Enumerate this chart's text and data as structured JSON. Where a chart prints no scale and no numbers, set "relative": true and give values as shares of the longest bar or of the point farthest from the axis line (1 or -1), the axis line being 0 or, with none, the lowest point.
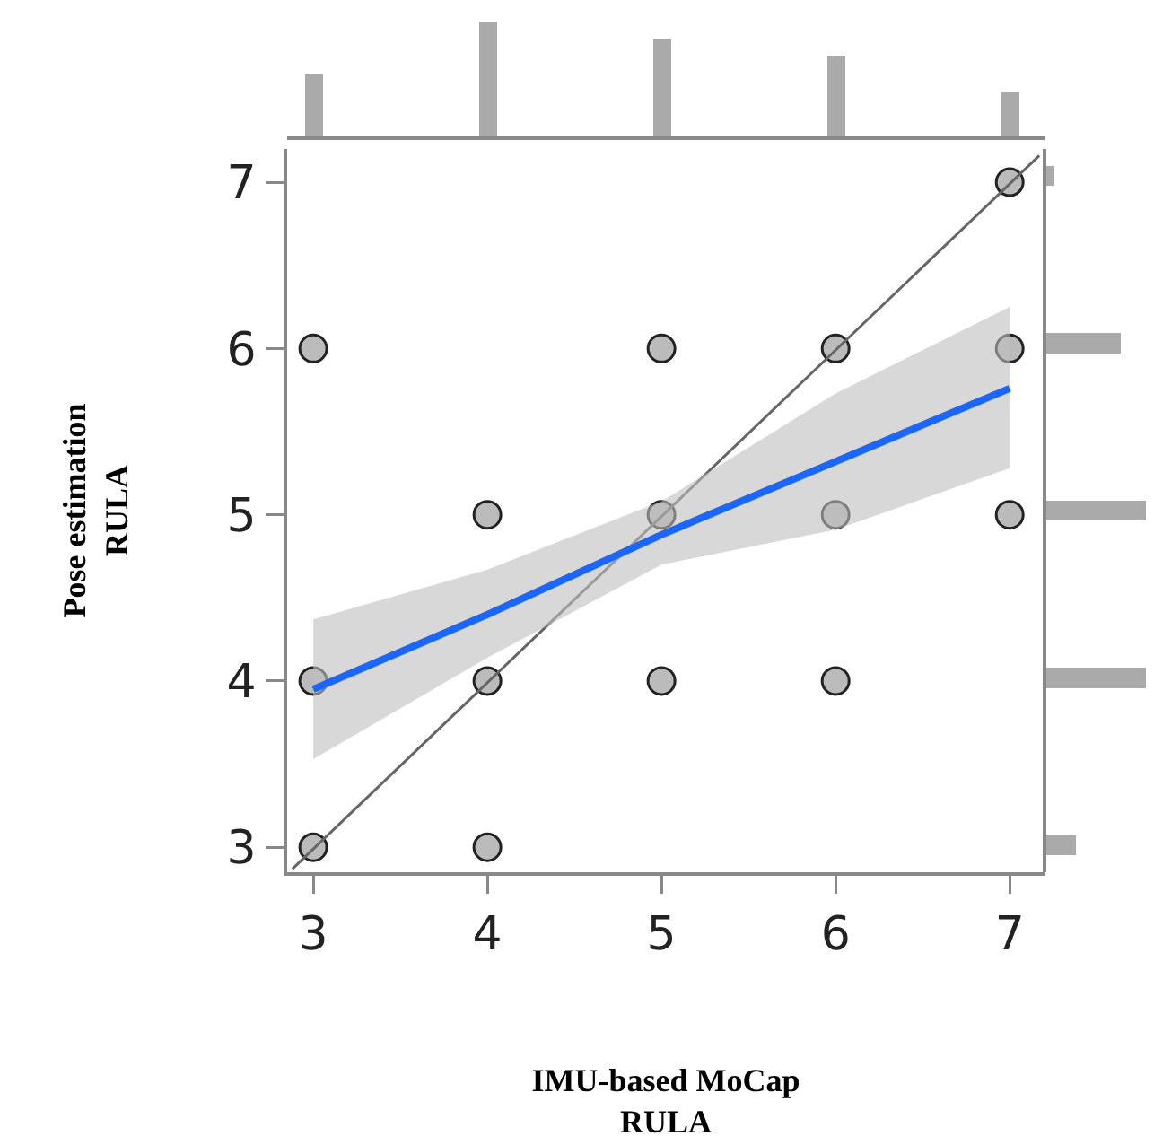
{
  "chart_data": [
    {
      "type": "scatter",
      "xlabel": "IMU-based MoCap\nRULA",
      "ylabel": "Pose estimation\nRULA",
      "grid": false,
      "xlim": [
        2.85,
        7.2
      ],
      "ylim": [
        2.85,
        7.2
      ],
      "xticks": [
        3,
        4,
        5,
        6,
        7
      ],
      "yticks": [
        3,
        4,
        5,
        6,
        7
      ],
      "series": [
        {
          "type": "scatter",
          "marker": "circle",
          "color": "#bbbbbb",
          "x": [
            3,
            3,
            3,
            4,
            4,
            4,
            5,
            5,
            5,
            6,
            6,
            6,
            7,
            7,
            7
          ],
          "values": [
            3,
            4,
            6,
            3,
            4,
            5,
            4,
            5,
            6,
            4,
            5,
            6,
            5,
            6,
            7
          ]
        },
        {
          "type": "line",
          "color": "#666666",
          "x": [
            2.88,
            7.17
          ],
          "values": [
            2.87,
            7.16
          ]
        },
        {
          "type": "line",
          "color": "#1a66ff",
          "x": [
            3,
            4,
            5,
            6,
            7
          ],
          "values": [
            3.95,
            4.4,
            4.88,
            5.32,
            5.76
          ],
          "lower": [
            3.53,
            4.14,
            4.7,
            4.91,
            5.28
          ],
          "upper": [
            4.37,
            4.67,
            5.08,
            5.73,
            6.25
          ]
        }
      ]
    },
    {
      "type": "bar",
      "relative": true,
      "categories": [
        null,
        null,
        null,
        null,
        null
      ],
      "values": [
        0.54,
        1,
        0.84,
        0.7,
        0.38
      ],
      "color": "#aaaaaa"
    },
    {
      "type": "bar",
      "relative": true,
      "orientation": "horizontal",
      "categories": [
        null,
        null,
        null,
        null,
        null
      ],
      "values": [
        0.08,
        0.75,
        1,
        1,
        0.3
      ],
      "color": "#aaaaaa"
    }
  ]
}
